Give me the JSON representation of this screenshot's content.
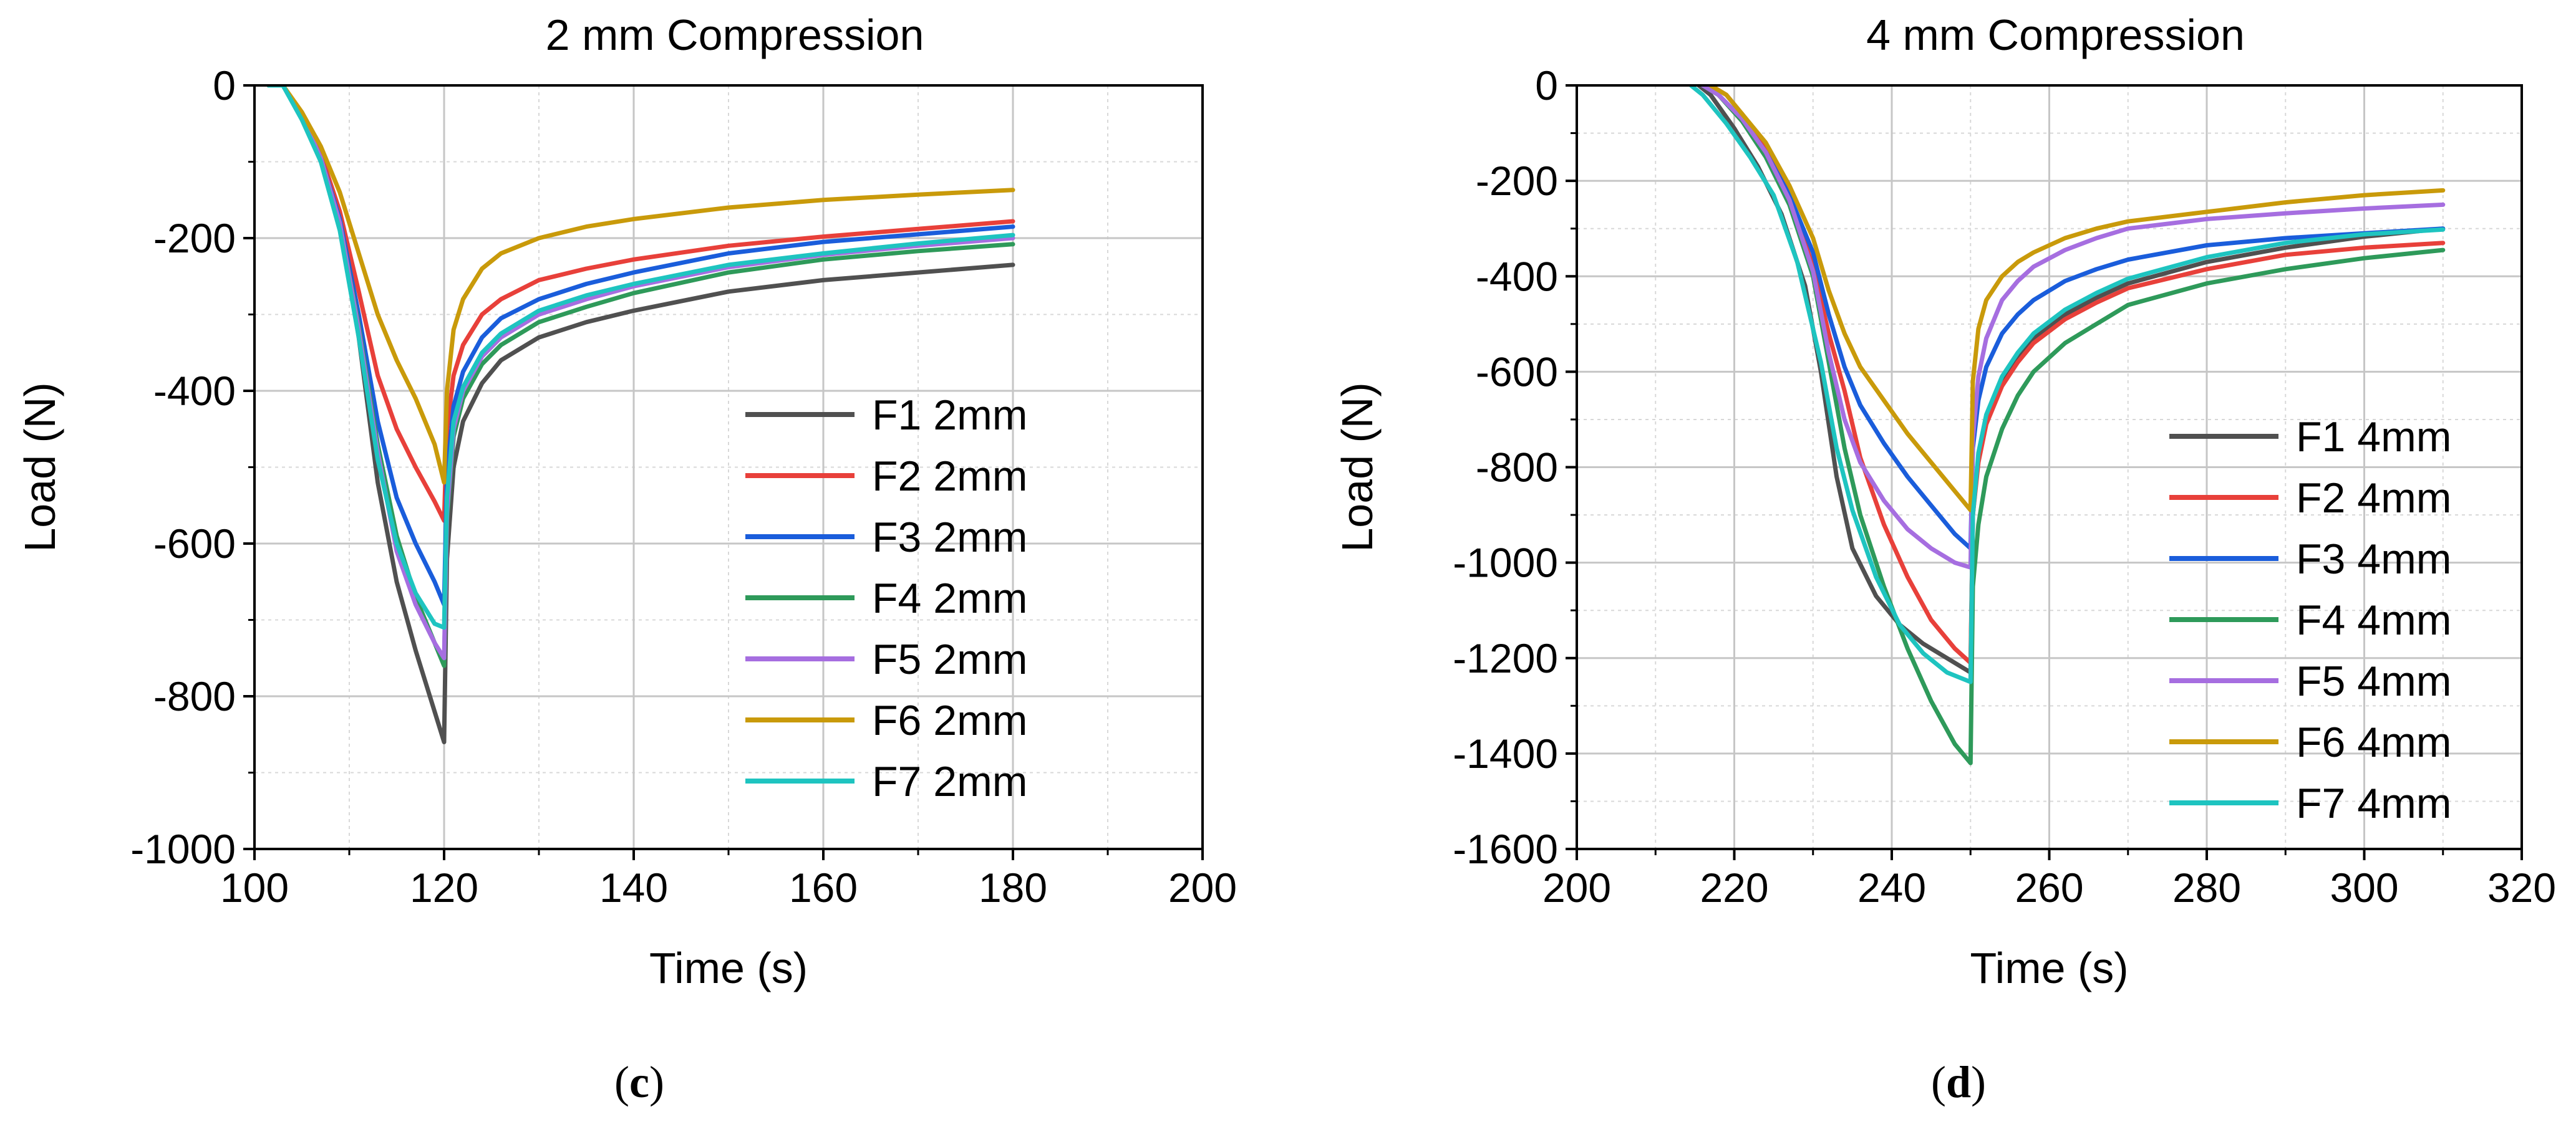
{
  "panels": [
    {
      "caption_open": "(",
      "caption_letter": "c",
      "caption_close": ")"
    },
    {
      "caption_open": "(",
      "caption_letter": "d",
      "caption_close": ")"
    }
  ],
  "chart_data": [
    {
      "type": "line",
      "title": "2 mm Compression",
      "xlabel": "Time (s)",
      "ylabel": "Load (N)",
      "xlim": [
        100,
        200
      ],
      "ylim": [
        -1000,
        0
      ],
      "xticks": [
        100,
        120,
        140,
        160,
        180,
        200
      ],
      "yticks": [
        0,
        -200,
        -400,
        -600,
        -800,
        -1000
      ],
      "grid": true,
      "legend_position": "right",
      "series": [
        {
          "name": "F1 2mm",
          "color": "#505050",
          "x": [
            101.5,
            103,
            105,
            107,
            109,
            111,
            113,
            115,
            117,
            119,
            120,
            120.3,
            121,
            122,
            124,
            126,
            130,
            135,
            140,
            150,
            160,
            170,
            180
          ],
          "y": [
            0,
            0,
            -40,
            -95,
            -180,
            -330,
            -520,
            -650,
            -740,
            -820,
            -860,
            -620,
            -500,
            -440,
            -390,
            -360,
            -330,
            -310,
            -295,
            -270,
            -255,
            -245,
            -235
          ]
        },
        {
          "name": "F2 2mm",
          "color": "#e8403a",
          "x": [
            101.5,
            103,
            105,
            107,
            109,
            111,
            113,
            115,
            117,
            119,
            120,
            120.3,
            121,
            122,
            124,
            126,
            130,
            135,
            140,
            150,
            160,
            170,
            180
          ],
          "y": [
            0,
            0,
            -40,
            -90,
            -165,
            -270,
            -380,
            -450,
            -500,
            -545,
            -570,
            -450,
            -380,
            -340,
            -300,
            -280,
            -255,
            -240,
            -228,
            -210,
            -198,
            -188,
            -178
          ]
        },
        {
          "name": "F3 2mm",
          "color": "#1a5ddb",
          "x": [
            101.5,
            103,
            105,
            107,
            109,
            111,
            113,
            115,
            117,
            119,
            120,
            120.3,
            121,
            122,
            124,
            126,
            130,
            135,
            140,
            150,
            160,
            170,
            180
          ],
          "y": [
            0,
            0,
            -40,
            -95,
            -175,
            -300,
            -440,
            -540,
            -600,
            -650,
            -680,
            -510,
            -420,
            -375,
            -330,
            -305,
            -280,
            -260,
            -245,
            -220,
            -205,
            -195,
            -185
          ]
        },
        {
          "name": "F4 2mm",
          "color": "#2e9a5a",
          "x": [
            101.5,
            103,
            105,
            107,
            109,
            111,
            113,
            115,
            117,
            119,
            120,
            120.3,
            121,
            122,
            124,
            126,
            130,
            135,
            140,
            150,
            160,
            170,
            180
          ],
          "y": [
            0,
            0,
            -40,
            -95,
            -180,
            -315,
            -470,
            -590,
            -670,
            -730,
            -760,
            -570,
            -460,
            -410,
            -365,
            -340,
            -310,
            -290,
            -272,
            -245,
            -228,
            -217,
            -208
          ]
        },
        {
          "name": "F5 2mm",
          "color": "#a66ee0",
          "x": [
            101.5,
            103,
            105,
            107,
            109,
            111,
            113,
            115,
            117,
            119,
            120,
            120.3,
            121,
            122,
            124,
            126,
            130,
            135,
            140,
            150,
            160,
            170,
            180
          ],
          "y": [
            0,
            0,
            -40,
            -95,
            -180,
            -320,
            -480,
            -610,
            -680,
            -730,
            -750,
            -560,
            -450,
            -400,
            -355,
            -330,
            -300,
            -280,
            -263,
            -238,
            -222,
            -210,
            -200
          ]
        },
        {
          "name": "F6 2mm",
          "color": "#c99a0a",
          "x": [
            101.5,
            103,
            105,
            107,
            109,
            111,
            113,
            115,
            117,
            119,
            120,
            120.3,
            121,
            122,
            124,
            126,
            130,
            135,
            140,
            150,
            160,
            170,
            180
          ],
          "y": [
            0,
            0,
            -35,
            -80,
            -140,
            -220,
            -300,
            -360,
            -410,
            -470,
            -520,
            -400,
            -320,
            -280,
            -240,
            -220,
            -200,
            -185,
            -175,
            -160,
            -150,
            -143,
            -137
          ]
        },
        {
          "name": "F7 2mm",
          "color": "#1ec4c0",
          "x": [
            101.5,
            103,
            105,
            107,
            109,
            111,
            113,
            115,
            117,
            119,
            120,
            120.3,
            121,
            122,
            124,
            126,
            130,
            135,
            140,
            150,
            160,
            170,
            180
          ],
          "y": [
            0,
            0,
            -45,
            -100,
            -190,
            -330,
            -490,
            -600,
            -665,
            -705,
            -710,
            -540,
            -440,
            -395,
            -350,
            -325,
            -295,
            -275,
            -260,
            -235,
            -220,
            -207,
            -196
          ]
        }
      ]
    },
    {
      "type": "line",
      "title": "4 mm Compression",
      "xlabel": "Time (s)",
      "ylabel": "Load (N)",
      "xlim": [
        200,
        320
      ],
      "ylim": [
        -1600,
        0
      ],
      "xticks": [
        200,
        220,
        240,
        260,
        280,
        300,
        320
      ],
      "yticks": [
        0,
        -200,
        -400,
        -600,
        -800,
        -1000,
        -1200,
        -1400,
        -1600
      ],
      "grid": true,
      "legend_position": "right",
      "series": [
        {
          "name": "F1 4mm",
          "color": "#505050",
          "x": [
            215.5,
            217,
            220,
            223,
            226,
            229,
            231,
            233,
            235,
            238,
            241,
            244,
            247,
            250,
            250.3,
            251,
            252,
            254,
            256,
            258,
            262,
            266,
            270,
            280,
            290,
            300,
            310
          ],
          "y": [
            0,
            -20,
            -90,
            -170,
            -270,
            -420,
            -600,
            -820,
            -970,
            -1070,
            -1130,
            -1170,
            -1200,
            -1230,
            -900,
            -780,
            -700,
            -620,
            -570,
            -530,
            -480,
            -445,
            -415,
            -370,
            -340,
            -317,
            -300
          ]
        },
        {
          "name": "F2 4mm",
          "color": "#e8403a",
          "x": [
            217,
            219,
            221,
            224,
            227,
            230,
            232,
            234,
            236,
            239,
            242,
            245,
            248,
            250,
            250.3,
            251,
            252,
            254,
            256,
            258,
            262,
            266,
            270,
            280,
            290,
            300,
            310
          ],
          "y": [
            0,
            -20,
            -60,
            -130,
            -230,
            -380,
            -520,
            -640,
            -780,
            -920,
            -1030,
            -1120,
            -1180,
            -1210,
            -900,
            -790,
            -710,
            -630,
            -580,
            -540,
            -490,
            -455,
            -425,
            -385,
            -355,
            -340,
            -330
          ]
        },
        {
          "name": "F3 4mm",
          "color": "#1a5ddb",
          "x": [
            216,
            218,
            221,
            224,
            227,
            230,
            232,
            234,
            236,
            239,
            242,
            245,
            248,
            250,
            250.3,
            251,
            252,
            254,
            256,
            258,
            262,
            266,
            270,
            280,
            290,
            300,
            310
          ],
          "y": [
            0,
            -20,
            -70,
            -140,
            -230,
            -350,
            -480,
            -590,
            -670,
            -750,
            -820,
            -880,
            -940,
            -970,
            -760,
            -660,
            -590,
            -520,
            -480,
            -450,
            -410,
            -385,
            -365,
            -335,
            -320,
            -310,
            -300
          ]
        },
        {
          "name": "F4 4mm",
          "color": "#2e9a5a",
          "x": [
            216,
            218,
            221,
            224,
            227,
            230,
            232,
            234,
            236,
            239,
            242,
            245,
            248,
            250,
            250.3,
            251,
            252,
            254,
            256,
            258,
            262,
            266,
            270,
            280,
            290,
            300,
            310
          ],
          "y": [
            0,
            -20,
            -75,
            -150,
            -250,
            -400,
            -580,
            -760,
            -900,
            -1050,
            -1180,
            -1290,
            -1380,
            -1420,
            -1050,
            -920,
            -820,
            -720,
            -650,
            -600,
            -540,
            -500,
            -460,
            -415,
            -385,
            -362,
            -345
          ]
        },
        {
          "name": "F5 4mm",
          "color": "#a66ee0",
          "x": [
            216,
            218,
            221,
            224,
            227,
            230,
            232,
            234,
            236,
            239,
            242,
            245,
            248,
            250,
            250.3,
            251,
            252,
            254,
            256,
            258,
            262,
            266,
            270,
            280,
            290,
            300,
            310
          ],
          "y": [
            0,
            -20,
            -70,
            -140,
            -240,
            -390,
            -560,
            -700,
            -790,
            -870,
            -930,
            -970,
            -1000,
            -1010,
            -740,
            -610,
            -530,
            -450,
            -410,
            -380,
            -345,
            -320,
            -300,
            -280,
            -268,
            -258,
            -250
          ]
        },
        {
          "name": "F6 4mm",
          "color": "#c99a0a",
          "x": [
            217,
            219,
            221,
            224,
            227,
            230,
            232,
            234,
            236,
            239,
            242,
            245,
            248,
            250,
            250.3,
            251,
            252,
            254,
            256,
            258,
            262,
            266,
            270,
            280,
            290,
            300,
            310
          ],
          "y": [
            0,
            -20,
            -60,
            -120,
            -210,
            -320,
            -430,
            -520,
            -590,
            -660,
            -730,
            -790,
            -850,
            -890,
            -620,
            -510,
            -450,
            -400,
            -370,
            -350,
            -320,
            -300,
            -285,
            -265,
            -245,
            -230,
            -220
          ]
        },
        {
          "name": "F7 4mm",
          "color": "#1ec4c0",
          "x": [
            214.5,
            216,
            219,
            222,
            225,
            228,
            231,
            233,
            235,
            238,
            241,
            244,
            247,
            250,
            250.3,
            251,
            252,
            254,
            256,
            258,
            262,
            266,
            270,
            280,
            290,
            300,
            310
          ],
          "y": [
            0,
            -20,
            -80,
            -150,
            -230,
            -370,
            -580,
            -760,
            -890,
            -1030,
            -1130,
            -1190,
            -1230,
            -1250,
            -900,
            -770,
            -690,
            -610,
            -560,
            -520,
            -470,
            -435,
            -405,
            -360,
            -330,
            -312,
            -302
          ]
        }
      ]
    }
  ]
}
